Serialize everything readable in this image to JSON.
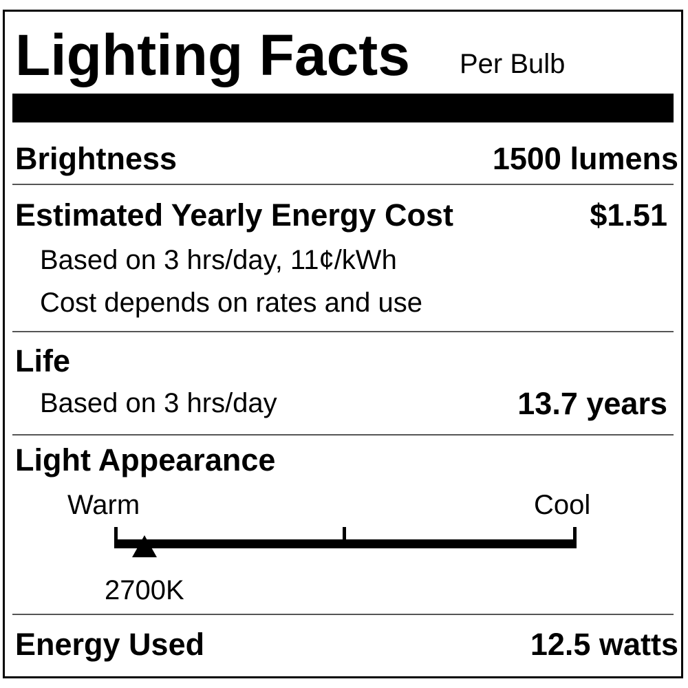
{
  "header": {
    "title": "Lighting Facts",
    "subtitle": "Per Bulb"
  },
  "brightness": {
    "label": "Brightness",
    "value": "1500 lumens"
  },
  "cost": {
    "label": "Estimated Yearly Energy Cost",
    "value": "$1.51",
    "note1": "Based on 3 hrs/day, 11¢/kWh",
    "note2": "Cost depends on rates and use"
  },
  "life": {
    "label": "Life",
    "note": "Based on 3 hrs/day",
    "value": "13.7 years"
  },
  "appearance": {
    "label": "Light Appearance",
    "warm_label": "Warm",
    "cool_label": "Cool",
    "value": "2700K",
    "marker_fraction": 0.066
  },
  "energy": {
    "label": "Energy Used",
    "value": "12.5 watts"
  }
}
